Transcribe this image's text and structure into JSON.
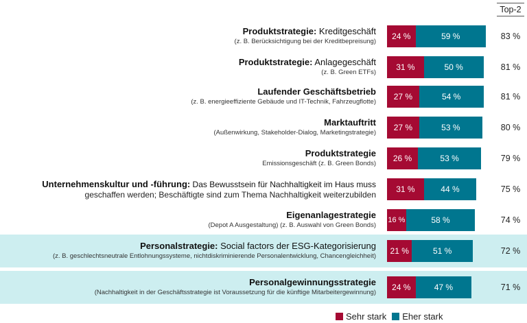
{
  "chart_data": {
    "type": "bar",
    "orientation": "horizontal",
    "stacked": true,
    "xlim": [
      0,
      100
    ],
    "top2_header": "Top-2",
    "series": [
      {
        "name": "Sehr stark",
        "color": "#a50a33",
        "values": [
          24,
          31,
          27,
          27,
          26,
          31,
          16,
          21,
          24
        ]
      },
      {
        "name": "Eher stark",
        "color": "#00768f",
        "values": [
          59,
          50,
          54,
          53,
          53,
          44,
          58,
          51,
          47
        ]
      }
    ],
    "categories": [
      {
        "bold": "Produktstrategie:",
        "rest": " Kreditgeschäft",
        "sub": "(z. B. Berücksichtigung bei der Kreditbepreisung)",
        "top2": "83 %",
        "highlight": false
      },
      {
        "bold": "Produktstrategie:",
        "rest": " Anlagegeschäft",
        "sub": "(z. B. Green ETFs)",
        "top2": "81 %",
        "highlight": false
      },
      {
        "bold": "Laufender Geschäftsbetrieb",
        "rest": "",
        "sub": "(z. B. energieeffiziente Gebäude und IT-Technik, Fahrzeugflotte)",
        "top2": "81 %",
        "highlight": false
      },
      {
        "bold": "Marktauftritt",
        "rest": "",
        "sub": "(Außenwirkung, Stakeholder-Dialog, Marketingstrategie)",
        "top2": "80 %",
        "highlight": false
      },
      {
        "bold": "Produktstrategie",
        "rest": "",
        "sub": "Emissionsgeschäft (z. B. Green Bonds)",
        "top2": "79 %",
        "highlight": false
      },
      {
        "bold": "Unternehmenskultur und -führung:",
        "rest": " Das Bewusstsein für Nachhaltigkeit im Haus muss",
        "sub": "geschaffen werden; Beschäftigte sind zum Thema Nachhaltigkeit weiterzubilden",
        "top2": "75 %",
        "highlight": false
      },
      {
        "bold": "Eigenanlagestrategie",
        "rest": "",
        "sub": "(Depot A Ausgestaltung) (z. B. Auswahl von Green Bonds)",
        "top2": "74 %",
        "highlight": false
      },
      {
        "bold": "Personalstrategie:",
        "rest": " Social factors der ESG-Kategorisierung",
        "sub": "(z. B. geschlechtsneutrale Entlohnungssysteme, nichtdiskriminierende Personalentwicklung, Chancengleichheit)",
        "top2": "72 %",
        "highlight": true
      },
      {
        "bold": "Personalgewinnungsstrategie",
        "rest": "",
        "sub": "(Nachhaltigkeit in der Geschäftsstrategie ist Voraussetzung für die künftige Mitarbeitergewinnung)",
        "top2": "71 %",
        "highlight": true
      }
    ],
    "highlight_color": "#cdeef0",
    "legend": "bottom-right"
  }
}
